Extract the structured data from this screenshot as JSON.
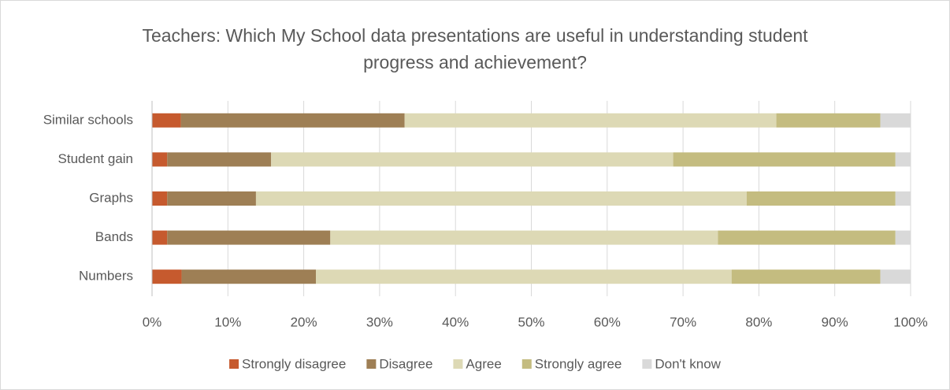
{
  "chart_data": {
    "type": "stacked_barh",
    "title": "Teachers: Which My School data presentations are useful in understanding student progress and achievement?",
    "categories": [
      "Similar schools",
      "Student gain",
      "Graphs",
      "Bands",
      "Numbers"
    ],
    "series": [
      {
        "name": "Strongly disagree",
        "color": "#c65a2e",
        "values": [
          3.8,
          2.0,
          2.0,
          2.0,
          3.9
        ]
      },
      {
        "name": "Disagree",
        "color": "#9e7f55",
        "values": [
          29.5,
          13.7,
          11.7,
          21.5,
          17.7
        ]
      },
      {
        "name": "Agree",
        "color": "#ddd9b5",
        "values": [
          49.0,
          53.0,
          64.7,
          51.1,
          54.8
        ]
      },
      {
        "name": "Strongly agree",
        "color": "#c4bc80",
        "values": [
          13.7,
          29.3,
          19.6,
          23.4,
          19.6
        ]
      },
      {
        "name": "Don't know",
        "color": "#d9d9d9",
        "values": [
          4.0,
          2.0,
          2.0,
          2.0,
          4.0
        ]
      }
    ],
    "xlim": [
      0,
      100
    ],
    "xticks": [
      {
        "value": 0,
        "label": "0%"
      },
      {
        "value": 10,
        "label": "10%"
      },
      {
        "value": 20,
        "label": "20%"
      },
      {
        "value": 30,
        "label": "30%"
      },
      {
        "value": 40,
        "label": "40%"
      },
      {
        "value": 50,
        "label": "50%"
      },
      {
        "value": 60,
        "label": "60%"
      },
      {
        "value": 70,
        "label": "70%"
      },
      {
        "value": 80,
        "label": "80%"
      },
      {
        "value": 90,
        "label": "90%"
      },
      {
        "value": 100,
        "label": "100%"
      }
    ],
    "grid": true,
    "legend": "bottom"
  }
}
